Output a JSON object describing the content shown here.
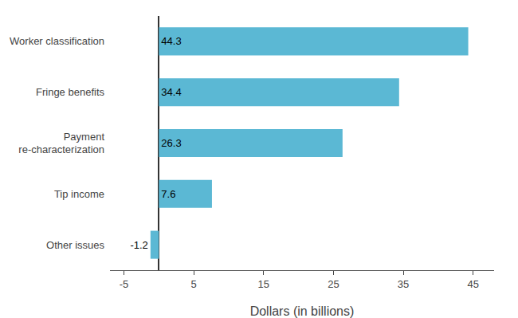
{
  "chart_data": {
    "type": "bar",
    "orientation": "horizontal",
    "categories": [
      "Worker classification",
      "Fringe benefits",
      "Payment\nre-characterization",
      "Tip income",
      "Other issues"
    ],
    "values": [
      44.3,
      34.4,
      26.3,
      7.6,
      -1.2
    ],
    "color": "#5BB8D4",
    "xlabel": "Dollars (in billions)",
    "xlim": [
      -7,
      48
    ],
    "xticks": [
      -5,
      5,
      15,
      25,
      35,
      45
    ],
    "data_labels": true,
    "grid": false
  }
}
